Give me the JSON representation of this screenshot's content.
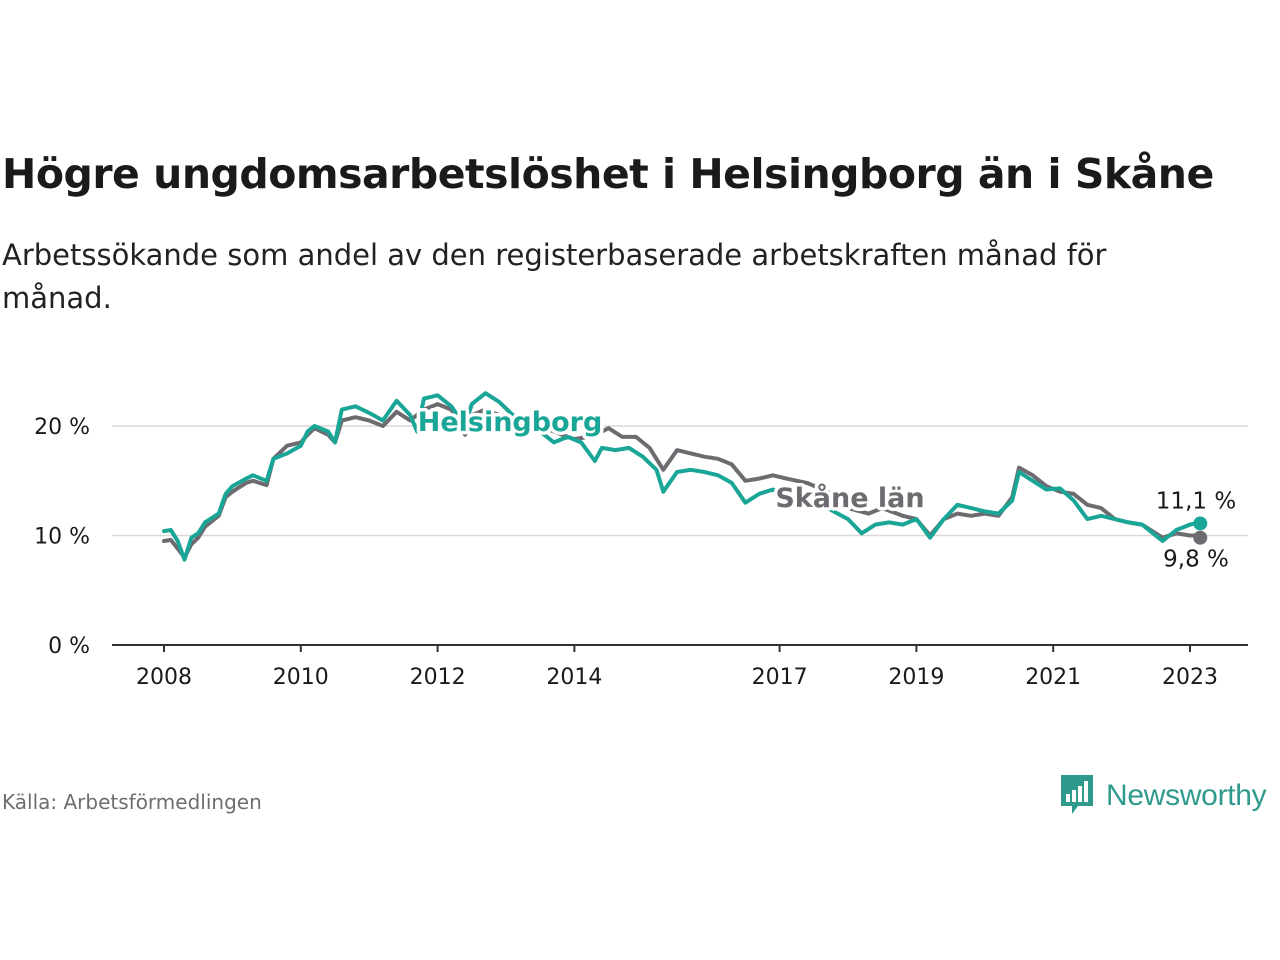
{
  "title": "Högre ungdomsarbetslöshet i Helsingborg än i Skåne",
  "subtitle": "Arbetssökande som andel av den registerbaserade arbetskraften månad för månad.",
  "source": "Källa: Arbetsförmedlingen",
  "brand": {
    "name": "Newsworthy",
    "icon": "bar-chart-icon",
    "color": "#2f9a8c"
  },
  "chart_data": {
    "type": "line",
    "title": "Högre ungdomsarbetslöshet i Helsingborg än i Skåne",
    "xlabel": "",
    "ylabel": "",
    "xlim": [
      2008,
      2024.2
    ],
    "ylim": [
      0,
      23
    ],
    "y_ticks": [
      {
        "value": 0,
        "label": "0 %"
      },
      {
        "value": 10,
        "label": "10 %"
      },
      {
        "value": 20,
        "label": "20 %"
      }
    ],
    "x_ticks": [
      {
        "value": 2008,
        "label": "2008"
      },
      {
        "value": 2010,
        "label": "2010"
      },
      {
        "value": 2012,
        "label": "2012"
      },
      {
        "value": 2014,
        "label": "2014"
      },
      {
        "value": 2017,
        "label": "2017"
      },
      {
        "value": 2019,
        "label": "2019"
      },
      {
        "value": 2021,
        "label": "2021"
      },
      {
        "value": 2023,
        "label": "2023"
      }
    ],
    "grid": true,
    "series": [
      {
        "name": "Skåne län",
        "label": "Skåne län",
        "color": "#6d6b70",
        "end_label": "9,8 %",
        "points": [
          [
            2008.0,
            9.5
          ],
          [
            2008.1,
            9.6
          ],
          [
            2008.2,
            8.8
          ],
          [
            2008.3,
            8.0
          ],
          [
            2008.4,
            9.2
          ],
          [
            2008.5,
            9.8
          ],
          [
            2008.6,
            10.8
          ],
          [
            2008.8,
            11.8
          ],
          [
            2008.9,
            13.5
          ],
          [
            2009.0,
            14.0
          ],
          [
            2009.2,
            14.8
          ],
          [
            2009.3,
            15.0
          ],
          [
            2009.5,
            14.6
          ],
          [
            2009.6,
            17.0
          ],
          [
            2009.8,
            18.2
          ],
          [
            2010.0,
            18.5
          ],
          [
            2010.1,
            19.2
          ],
          [
            2010.2,
            19.8
          ],
          [
            2010.4,
            19.2
          ],
          [
            2010.5,
            18.5
          ],
          [
            2010.6,
            20.5
          ],
          [
            2010.8,
            20.8
          ],
          [
            2011.0,
            20.5
          ],
          [
            2011.2,
            20.0
          ],
          [
            2011.4,
            21.3
          ],
          [
            2011.6,
            20.5
          ],
          [
            2011.8,
            21.5
          ],
          [
            2012.0,
            22.0
          ],
          [
            2012.2,
            21.5
          ],
          [
            2012.4,
            19.2
          ],
          [
            2012.5,
            21.0
          ],
          [
            2012.7,
            21.5
          ],
          [
            2012.9,
            21.0
          ],
          [
            2013.1,
            20.0
          ],
          [
            2013.3,
            19.5
          ],
          [
            2013.5,
            20.0
          ],
          [
            2013.7,
            19.5
          ],
          [
            2013.9,
            19.0
          ],
          [
            2014.0,
            18.8
          ],
          [
            2014.2,
            19.0
          ],
          [
            2014.3,
            19.2
          ],
          [
            2014.5,
            19.8
          ],
          [
            2014.7,
            19.0
          ],
          [
            2014.9,
            19.0
          ],
          [
            2015.1,
            18.0
          ],
          [
            2015.3,
            16.0
          ],
          [
            2015.5,
            17.8
          ],
          [
            2015.7,
            17.5
          ],
          [
            2015.9,
            17.2
          ],
          [
            2016.1,
            17.0
          ],
          [
            2016.3,
            16.5
          ],
          [
            2016.5,
            15.0
          ],
          [
            2016.7,
            15.2
          ],
          [
            2016.9,
            15.5
          ],
          [
            2017.1,
            15.2
          ],
          [
            2017.4,
            14.8
          ],
          [
            2017.7,
            14.0
          ],
          [
            2018.0,
            12.5
          ],
          [
            2018.3,
            12.0
          ],
          [
            2018.5,
            12.5
          ],
          [
            2018.8,
            11.8
          ],
          [
            2019.0,
            11.5
          ],
          [
            2019.2,
            10.0
          ],
          [
            2019.4,
            11.5
          ],
          [
            2019.6,
            12.0
          ],
          [
            2019.8,
            11.8
          ],
          [
            2020.0,
            12.0
          ],
          [
            2020.2,
            11.8
          ],
          [
            2020.4,
            13.5
          ],
          [
            2020.5,
            16.2
          ],
          [
            2020.7,
            15.5
          ],
          [
            2020.9,
            14.5
          ],
          [
            2021.1,
            14.0
          ],
          [
            2021.3,
            13.8
          ],
          [
            2021.5,
            12.8
          ],
          [
            2021.7,
            12.5
          ],
          [
            2021.9,
            11.5
          ],
          [
            2022.1,
            11.2
          ],
          [
            2022.3,
            11.0
          ],
          [
            2022.5,
            10.2
          ],
          [
            2022.6,
            9.8
          ],
          [
            2022.8,
            10.2
          ],
          [
            2023.0,
            10.0
          ],
          [
            2023.2,
            10.0
          ],
          [
            2023.15,
            9.8
          ]
        ]
      },
      {
        "name": "Helsingborg",
        "label": "Helsingborg",
        "color": "#1aa697",
        "end_label": "11,1 %",
        "points": [
          [
            2008.0,
            10.4
          ],
          [
            2008.1,
            10.5
          ],
          [
            2008.2,
            9.5
          ],
          [
            2008.3,
            7.8
          ],
          [
            2008.4,
            9.8
          ],
          [
            2008.5,
            10.2
          ],
          [
            2008.6,
            11.2
          ],
          [
            2008.8,
            12.0
          ],
          [
            2008.9,
            13.8
          ],
          [
            2009.0,
            14.5
          ],
          [
            2009.2,
            15.2
          ],
          [
            2009.3,
            15.5
          ],
          [
            2009.5,
            15.0
          ],
          [
            2009.6,
            17.0
          ],
          [
            2009.8,
            17.5
          ],
          [
            2010.0,
            18.2
          ],
          [
            2010.1,
            19.5
          ],
          [
            2010.2,
            20.0
          ],
          [
            2010.4,
            19.5
          ],
          [
            2010.5,
            18.5
          ],
          [
            2010.6,
            21.5
          ],
          [
            2010.8,
            21.8
          ],
          [
            2011.0,
            21.2
          ],
          [
            2011.2,
            20.5
          ],
          [
            2011.4,
            22.3
          ],
          [
            2011.6,
            21.0
          ],
          [
            2011.7,
            19.5
          ],
          [
            2011.8,
            22.5
          ],
          [
            2012.0,
            22.8
          ],
          [
            2012.2,
            21.8
          ],
          [
            2012.4,
            20.0
          ],
          [
            2012.5,
            22.0
          ],
          [
            2012.7,
            23.0
          ],
          [
            2012.9,
            22.2
          ],
          [
            2013.1,
            21.0
          ],
          [
            2013.3,
            20.0
          ],
          [
            2013.5,
            19.5
          ],
          [
            2013.7,
            18.5
          ],
          [
            2013.9,
            19.0
          ],
          [
            2014.1,
            18.5
          ],
          [
            2014.3,
            16.8
          ],
          [
            2014.4,
            18.0
          ],
          [
            2014.6,
            17.8
          ],
          [
            2014.8,
            18.0
          ],
          [
            2015.0,
            17.2
          ],
          [
            2015.2,
            16.0
          ],
          [
            2015.3,
            14.0
          ],
          [
            2015.5,
            15.8
          ],
          [
            2015.7,
            16.0
          ],
          [
            2015.9,
            15.8
          ],
          [
            2016.1,
            15.5
          ],
          [
            2016.3,
            14.8
          ],
          [
            2016.5,
            13.0
          ],
          [
            2016.7,
            13.8
          ],
          [
            2016.9,
            14.2
          ],
          [
            2017.1,
            13.8
          ],
          [
            2017.4,
            12.5
          ],
          [
            2017.7,
            12.5
          ],
          [
            2018.0,
            11.5
          ],
          [
            2018.2,
            10.2
          ],
          [
            2018.4,
            11.0
          ],
          [
            2018.6,
            11.2
          ],
          [
            2018.8,
            11.0
          ],
          [
            2019.0,
            11.5
          ],
          [
            2019.2,
            9.8
          ],
          [
            2019.4,
            11.5
          ],
          [
            2019.6,
            12.8
          ],
          [
            2019.8,
            12.5
          ],
          [
            2020.0,
            12.2
          ],
          [
            2020.2,
            12.0
          ],
          [
            2020.4,
            13.2
          ],
          [
            2020.5,
            15.8
          ],
          [
            2020.7,
            15.0
          ],
          [
            2020.9,
            14.2
          ],
          [
            2021.1,
            14.3
          ],
          [
            2021.3,
            13.2
          ],
          [
            2021.5,
            11.5
          ],
          [
            2021.7,
            11.8
          ],
          [
            2021.9,
            11.5
          ],
          [
            2022.1,
            11.2
          ],
          [
            2022.3,
            11.0
          ],
          [
            2022.5,
            10.0
          ],
          [
            2022.6,
            9.5
          ],
          [
            2022.8,
            10.5
          ],
          [
            2023.0,
            11.0
          ],
          [
            2023.2,
            11.3
          ],
          [
            2023.15,
            11.1
          ]
        ]
      }
    ]
  }
}
